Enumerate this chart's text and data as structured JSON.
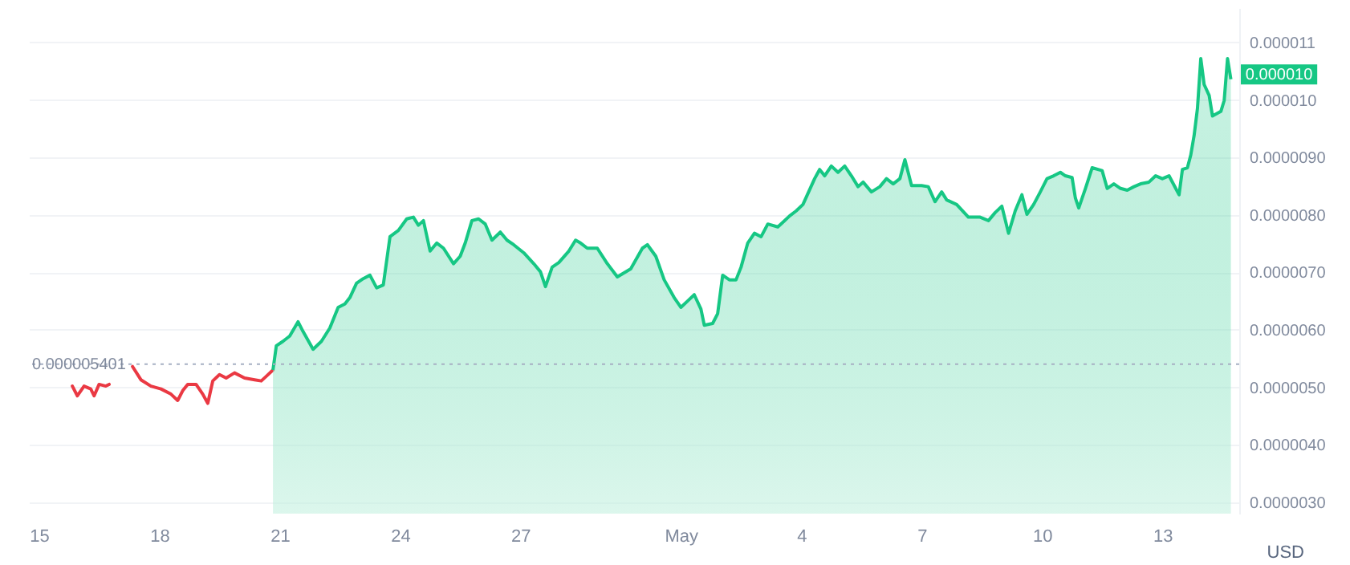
{
  "chart_data": {
    "type": "line",
    "ylabel": "USD",
    "xlim": [
      "--04-14T18:00",
      "--05-14T22:00"
    ],
    "xticks": [
      {
        "value": "--04-15",
        "label": "15"
      },
      {
        "value": "--04-18",
        "label": "18"
      },
      {
        "value": "--04-21",
        "label": "21"
      },
      {
        "value": "--04-24",
        "label": "24"
      },
      {
        "value": "--04-27",
        "label": "27"
      },
      {
        "value": "--05-01",
        "label": "May"
      },
      {
        "value": "--05-04",
        "label": "4"
      },
      {
        "value": "--05-07",
        "label": "7"
      },
      {
        "value": "--05-10",
        "label": "10"
      },
      {
        "value": "--05-13",
        "label": "13"
      }
    ],
    "ylim": [
      2.8e-06,
      1.16e-05
    ],
    "yticks": [
      {
        "value": 3e-06,
        "label": "0.0000030"
      },
      {
        "value": 4e-06,
        "label": "0.0000040"
      },
      {
        "value": 5e-06,
        "label": "0.0000050"
      },
      {
        "value": 6e-06,
        "label": "0.0000060"
      },
      {
        "value": 7e-06,
        "label": "0.0000070"
      },
      {
        "value": 8e-06,
        "label": "0.0000080"
      },
      {
        "value": 9e-06,
        "label": "0.0000090"
      },
      {
        "value": 1e-05,
        "label": "0.000010"
      },
      {
        "value": 1.1e-05,
        "label": "0.000011"
      }
    ],
    "grid": "y",
    "ref_lines": [
      {
        "axis": "y",
        "value": 5.401e-06,
        "label": "0.000005401",
        "color": "#a6b0c3",
        "line_style": "dotted"
      }
    ],
    "annotations": [
      {
        "text": "0.000010",
        "x": "--05-14T17:00",
        "y": 1.036e-05
      }
    ],
    "series": [
      {
        "type": "line",
        "color": "#ea3943",
        "x": [
          "--04-15T20:00",
          "--04-15T23:00",
          "--04-16T03:00",
          "--04-16T07:00",
          "--04-16T09:00",
          "--04-16T12:00",
          "--04-16T16:00",
          "--04-16T18:00",
          "--04-17T01:00",
          "--04-17T08:00",
          "--04-17T13:00",
          "--04-17T19:00",
          "--04-18T01:00",
          "--04-18T07:00",
          "--04-18T11:00",
          "--04-18T14:00",
          "--04-18T17:00",
          "--04-18T22:00",
          "--04-19T02:00",
          "--04-19T05:00",
          "--04-19T08:00",
          "--04-19T12:00",
          "--04-19T16:00",
          "--04-19T21:00",
          "--04-20T03:00",
          "--04-20T09:00",
          "--04-20T13:00",
          "--04-20T16:00",
          "--04-20T20:00"
        ],
        "values": [
          5.02e-06,
          4.85e-06,
          5.02e-06,
          4.97e-06,
          4.85e-06,
          5.05e-06,
          5.02e-06,
          5.05e-06,
          null,
          5.36e-06,
          5.13e-06,
          5.02e-06,
          4.97e-06,
          4.88e-06,
          4.77e-06,
          4.94e-06,
          5.05e-06,
          5.05e-06,
          4.88e-06,
          4.72e-06,
          5.11e-06,
          5.22e-06,
          5.16e-06,
          5.25e-06,
          5.16e-06,
          5.13e-06,
          5.11e-06,
          5.19e-06,
          5.3e-06
        ]
      },
      {
        "type": "area",
        "color": "#16c784",
        "x": [
          "--04-20T20:00",
          "--04-20T22:00",
          "--04-21T02:00",
          "--04-21T06:00",
          "--04-21T11:00",
          "--04-21T14:00",
          "--04-21T20:00",
          "--04-22T01:00",
          "--04-22T06:00",
          "--04-22T11:00",
          "--04-22T15:00",
          "--04-22T18:00",
          "--04-22T22:00",
          "--04-23T02:00",
          "--04-23T06:00",
          "--04-23T10:00",
          "--04-23T14:00",
          "--04-23T18:00",
          "--04-23T23:00",
          "--04-24T04:00",
          "--04-24T08:00",
          "--04-24T11:00",
          "--04-24T14:00",
          "--04-24T18:00",
          "--04-24T22:00",
          "--04-25T02:00",
          "--04-25T08:00",
          "--04-25T12:00",
          "--04-25T15:00",
          "--04-25T19:00",
          "--04-25T23:00",
          "--04-26T03:00",
          "--04-26T07:00",
          "--04-26T12:00",
          "--04-26T16:00",
          "--04-26T20:00",
          "--04-27T02:00",
          "--04-27T08:00",
          "--04-27T12:00",
          "--04-27T15:00",
          "--04-27T19:00",
          "--04-27T23:00",
          "--04-28T05:00",
          "--04-28T09:00",
          "--04-28T12:00",
          "--04-28T16:00",
          "--04-28T22:00",
          "--04-29T04:00",
          "--04-29T10:00",
          "--04-29T18:00",
          "--04-30T01:00",
          "--04-30T04:00",
          "--04-30T09:00",
          "--04-30T14:00",
          "--04-30T20:00",
          "--05-01T00:00",
          "--05-01T04:00",
          "--05-01T08:00",
          "--05-01T12:00",
          "--05-01T14:00",
          "--05-01T19:00",
          "--05-01T22:00",
          "--05-02T01:00",
          "--05-02T05:00",
          "--05-02T09:00",
          "--05-02T12:00",
          "--05-02T16:00",
          "--05-02T20:00",
          "--05-03T00:00",
          "--05-03T04:00",
          "--05-03T10:00",
          "--05-03T13:00",
          "--05-03T17:00",
          "--05-03T21:00",
          "--05-04T01:00",
          "--05-04T08:00",
          "--05-04T11:00",
          "--05-04T14:00",
          "--05-04T18:00",
          "--05-04T22:00",
          "--05-05T02:00",
          "--05-05T06:00",
          "--05-05T10:00",
          "--05-05T13:00",
          "--05-05T18:00",
          "--05-05T23:00",
          "--05-06T03:00",
          "--05-06T07:00",
          "--05-06T11:00",
          "--05-06T14:00",
          "--05-06T18:00",
          "--05-07T00:00",
          "--05-07T04:00",
          "--05-07T08:00",
          "--05-07T12:00",
          "--05-07T15:00",
          "--05-07T21:00",
          "--05-08T04:00",
          "--05-08T11:00",
          "--05-08T16:00",
          "--05-08T20:00",
          "--05-09T00:00",
          "--05-09T04:00",
          "--05-09T08:00",
          "--05-09T12:00",
          "--05-09T15:00",
          "--05-09T19:00",
          "--05-09T23:00",
          "--05-10T03:00",
          "--05-10T07:00",
          "--05-10T11:00",
          "--05-10T14:00",
          "--05-10T18:00",
          "--05-10T20:00",
          "--05-10T22:00",
          "--05-11T02:00",
          "--05-11T06:00",
          "--05-11T12:00",
          "--05-11T15:00",
          "--05-11T19:00",
          "--05-11T23:00",
          "--05-12T03:00",
          "--05-12T07:00",
          "--05-12T11:00",
          "--05-12T16:00",
          "--05-12T20:00",
          "--05-13T00:00",
          "--05-13T04:00",
          "--05-13T08:00",
          "--05-13T10:00",
          "--05-13T12:00",
          "--05-13T15:00",
          "--05-13T17:00",
          "--05-13T19:00",
          "--05-13T21:00",
          "--05-13T23:00",
          "--05-14T01:00",
          "--05-14T04:00",
          "--05-14T06:00",
          "--05-14T11:00",
          "--05-14T13:00",
          "--05-14T15:00",
          "--05-14T17:00"
        ],
        "values": [
          5.3e-06,
          5.72e-06,
          5.8e-06,
          5.89e-06,
          6.14e-06,
          5.97e-06,
          5.66e-06,
          5.8e-06,
          6.03e-06,
          6.39e-06,
          6.45e-06,
          6.56e-06,
          6.81e-06,
          6.89e-06,
          6.95e-06,
          6.73e-06,
          6.78e-06,
          7.62e-06,
          7.73e-06,
          7.93e-06,
          7.96e-06,
          7.82e-06,
          7.9e-06,
          7.37e-06,
          7.51e-06,
          7.42e-06,
          7.15e-06,
          7.28e-06,
          7.51e-06,
          7.9e-06,
          7.93e-06,
          7.84e-06,
          7.56e-06,
          7.7e-06,
          7.56e-06,
          7.48e-06,
          7.34e-06,
          7.15e-06,
          7.01e-06,
          6.75e-06,
          7.09e-06,
          7.17e-06,
          7.37e-06,
          7.56e-06,
          7.51e-06,
          7.42e-06,
          7.42e-06,
          7.15e-06,
          6.92e-06,
          7.06e-06,
          7.42e-06,
          7.48e-06,
          7.28e-06,
          6.87e-06,
          6.56e-06,
          6.39e-06,
          6.5e-06,
          6.61e-06,
          6.36e-06,
          6.08e-06,
          6.11e-06,
          6.28e-06,
          6.95e-06,
          6.87e-06,
          6.87e-06,
          7.09e-06,
          7.51e-06,
          7.68e-06,
          7.62e-06,
          7.84e-06,
          7.79e-06,
          7.87e-06,
          7.98e-06,
          8.07e-06,
          8.18e-06,
          8.63e-06,
          8.79e-06,
          8.68e-06,
          8.85e-06,
          8.74e-06,
          8.85e-06,
          8.68e-06,
          8.49e-06,
          8.57e-06,
          8.4e-06,
          8.49e-06,
          8.63e-06,
          8.54e-06,
          8.63e-06,
          8.96e-06,
          8.51e-06,
          8.51e-06,
          8.49e-06,
          8.23e-06,
          8.4e-06,
          8.26e-06,
          8.18e-06,
          7.96e-06,
          7.96e-06,
          7.9e-06,
          8.04e-06,
          8.15e-06,
          7.68e-06,
          8.07e-06,
          8.35e-06,
          8.01e-06,
          8.18e-06,
          8.4e-06,
          8.63e-06,
          8.68e-06,
          8.74e-06,
          8.68e-06,
          8.65e-06,
          8.29e-06,
          8.12e-06,
          8.46e-06,
          8.82e-06,
          8.77e-06,
          8.46e-06,
          8.54e-06,
          8.46e-06,
          8.43e-06,
          8.49e-06,
          8.54e-06,
          8.57e-06,
          8.68e-06,
          8.63e-06,
          8.68e-06,
          8.46e-06,
          8.35e-06,
          8.79e-06,
          8.82e-06,
          9.04e-06,
          9.38e-06,
          9.85e-06,
          1.072e-05,
          1.027e-05,
          1.008e-05,
          9.72e-06,
          9.8e-06,
          9.99e-06,
          1.072e-05,
          1.036e-05
        ]
      }
    ]
  }
}
